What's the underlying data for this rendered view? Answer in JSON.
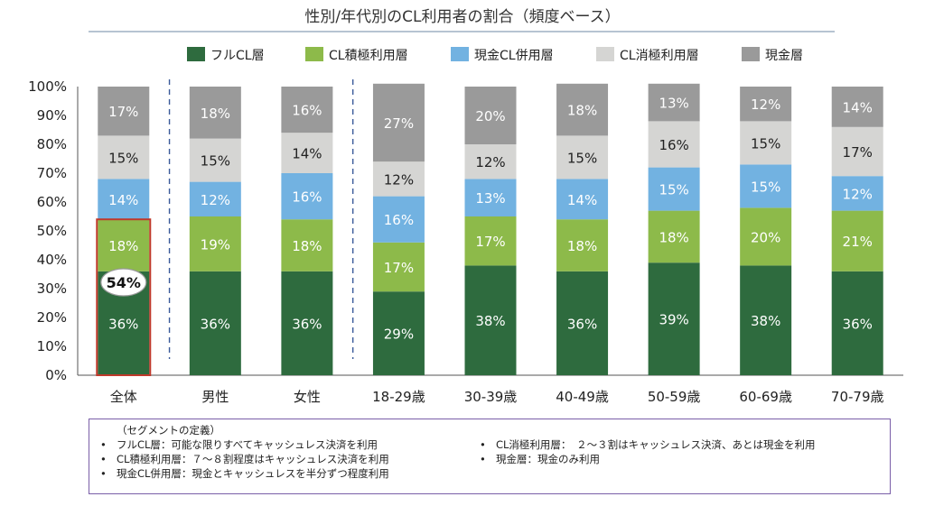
{
  "chart_data": {
    "type": "bar",
    "stacked": true,
    "percent": true,
    "title": "性別/年代別のCL利用者の割合（頻度ベース）",
    "categories": [
      "全体",
      "男性",
      "女性",
      "18-29歳",
      "30-39歳",
      "40-49歳",
      "50-59歳",
      "60-69歳",
      "70-79歳"
    ],
    "ylim": [
      0,
      100
    ],
    "yticks": [
      "0%",
      "10%",
      "20%",
      "30%",
      "40%",
      "50%",
      "60%",
      "70%",
      "80%",
      "90%",
      "100%"
    ],
    "legend_position": "top",
    "series": [
      {
        "name": "フルCL層",
        "color": "#2e6b3e",
        "label_color": "#ffffff",
        "values": [
          36,
          36,
          36,
          29,
          38,
          36,
          39,
          38,
          36
        ],
        "labels": [
          "36%",
          "36%",
          "36%",
          "29%",
          "38%",
          "36%",
          "39%",
          "38%",
          "36%"
        ]
      },
      {
        "name": "CL積極利用層",
        "color": "#8dba4a",
        "label_color": "#ffffff",
        "values": [
          18,
          19,
          18,
          17,
          17,
          18,
          18,
          20,
          21
        ],
        "labels": [
          "18%",
          "19%",
          "18%",
          "17%",
          "17%",
          "18%",
          "18%",
          "20%",
          "21%"
        ]
      },
      {
        "name": "現金CL併用層",
        "color": "#72b2e1",
        "label_color": "#ffffff",
        "values": [
          14,
          12,
          16,
          16,
          13,
          14,
          15,
          15,
          12
        ],
        "labels": [
          "14%",
          "12%",
          "16%",
          "16%",
          "13%",
          "14%",
          "15%",
          "15%",
          "12%"
        ]
      },
      {
        "name": "CL消極利用層",
        "color": "#d5d5d3",
        "label_color": "#222222",
        "values": [
          15,
          15,
          14,
          12,
          12,
          15,
          16,
          15,
          17
        ],
        "labels": [
          "15%",
          "15%",
          "14%",
          "12%",
          "12%",
          "15%",
          "16%",
          "15%",
          "17%"
        ]
      },
      {
        "name": "現金層",
        "color": "#9a9a9a",
        "label_color": "#ffffff",
        "values": [
          17,
          18,
          16,
          27,
          20,
          18,
          13,
          12,
          14
        ],
        "labels": [
          "17%",
          "18%",
          "16%",
          "27%",
          "20%",
          "18%",
          "13%",
          "12%",
          "14%"
        ]
      }
    ],
    "annotation": {
      "text": "54%",
      "category": "全体",
      "value": 54,
      "highlight_color": "#c0392b"
    },
    "separators_after": [
      "全体",
      "女性"
    ]
  },
  "notes": {
    "header": "（セグメントの定義）",
    "bullet": "•",
    "items_left": [
      "フルCL層：可能な限りすべてキャッシュレス決済を利用",
      "CL積極利用層：７～８割程度はキャッシュレス決済を利用",
      "現金CL併用層：現金とキャッシュレスを半分ずつ程度利用"
    ],
    "items_right": [
      "CL消極利用層：　２～３割はキャッシュレス決済、あとは現金を利用",
      "現金層：現金のみ利用"
    ],
    "border_color": "#7a5ea8"
  }
}
